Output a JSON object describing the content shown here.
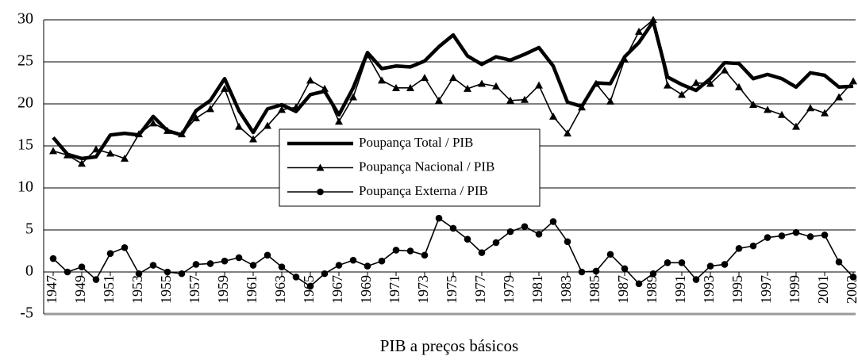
{
  "chart_data": {
    "type": "line",
    "x_label": "PIB a preços básicos",
    "x": [
      1947,
      1948,
      1949,
      1950,
      1951,
      1952,
      1953,
      1954,
      1955,
      1956,
      1957,
      1958,
      1959,
      1960,
      1961,
      1962,
      1963,
      1964,
      1965,
      1966,
      1967,
      1968,
      1969,
      1970,
      1971,
      1972,
      1973,
      1974,
      1975,
      1976,
      1977,
      1978,
      1979,
      1980,
      1981,
      1982,
      1983,
      1984,
      1985,
      1986,
      1987,
      1988,
      1989,
      1990,
      1991,
      1992,
      1993,
      1994,
      1995,
      1996,
      1997,
      1998,
      1999,
      2000,
      2001,
      2002,
      2003
    ],
    "xlim": [
      1947,
      2003
    ],
    "xticks": [
      1947,
      1949,
      1951,
      1953,
      1955,
      1957,
      1959,
      1961,
      1963,
      1965,
      1967,
      1969,
      1971,
      1973,
      1975,
      1977,
      1979,
      1981,
      1983,
      1985,
      1987,
      1989,
      1991,
      1993,
      1995,
      1997,
      1999,
      2001,
      2003
    ],
    "ylim": [
      -5,
      30
    ],
    "yticks": [
      -5,
      0,
      5,
      10,
      15,
      20,
      25,
      30
    ],
    "grid": true,
    "series": [
      {
        "name": "Poupança Total / PIB",
        "color": "#000000",
        "marker": "none",
        "values": [
          16,
          14,
          13.5,
          13.7,
          16.3,
          16.5,
          16.3,
          18.5,
          16.8,
          16.3,
          19.2,
          20.4,
          23,
          19.2,
          16.6,
          19.4,
          19.9,
          19.1,
          21.1,
          21.5,
          18.7,
          21.9,
          26.1,
          24.2,
          24.5,
          24.4,
          25.1,
          26.8,
          28.2,
          25.7,
          24.7,
          25.6,
          25.2,
          25.9,
          26.7,
          24.5,
          20.2,
          19.7,
          22.5,
          22.4,
          25.6,
          27.3,
          29.8,
          23.2,
          22.3,
          21.6,
          23,
          24.9,
          24.8,
          23,
          23.5,
          23,
          22,
          23.7,
          23.4,
          22,
          22.1
        ]
      },
      {
        "name": "Poupança Nacional / PIB",
        "color": "#000000",
        "marker": "triangle",
        "values": [
          14.4,
          13.9,
          12.9,
          14.6,
          14.1,
          13.5,
          16.4,
          17.7,
          16.8,
          16.4,
          18.3,
          19.4,
          21.8,
          17.3,
          15.8,
          17.4,
          19.3,
          19.6,
          22.8,
          21.8,
          17.9,
          20.8,
          25.8,
          22.8,
          21.9,
          21.9,
          23.1,
          20.4,
          23.1,
          21.8,
          22.4,
          22.1,
          20.4,
          20.5,
          22.2,
          18.5,
          16.5,
          19.6,
          22.4,
          20.3,
          25.3,
          28.6,
          30,
          22.2,
          21.1,
          22.5,
          22.4,
          24,
          22,
          19.9,
          19.3,
          18.7,
          17.3,
          19.5,
          18.9,
          20.8,
          22.7
        ]
      },
      {
        "name": "Poupança Externa / PIB",
        "color": "#000000",
        "marker": "circle",
        "values": [
          1.6,
          0,
          0.6,
          -0.9,
          2.2,
          2.9,
          -0.2,
          0.8,
          0,
          -0.2,
          0.9,
          1,
          1.3,
          1.7,
          0.8,
          2,
          0.6,
          -0.6,
          -1.7,
          -0.2,
          0.8,
          1.4,
          0.7,
          1.3,
          2.6,
          2.5,
          2,
          6.4,
          5.2,
          3.9,
          2.3,
          3.5,
          4.8,
          5.4,
          4.5,
          6,
          3.6,
          0,
          0.1,
          2.1,
          0.4,
          -1.4,
          -0.2,
          1.1,
          1.1,
          -0.9,
          0.7,
          0.9,
          2.8,
          3.1,
          4.1,
          4.3,
          4.7,
          4.2,
          4.4,
          1.2,
          -0.6
        ]
      }
    ]
  }
}
